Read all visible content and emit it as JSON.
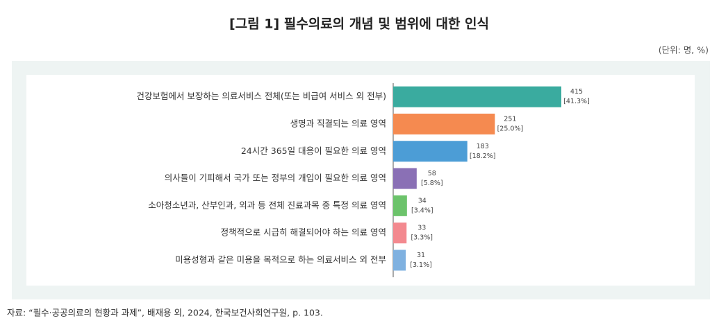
{
  "chart_data": {
    "type": "bar",
    "orientation": "horizontal",
    "title": "[그림 1] 필수의료의 개념 및 범위에 대한 인식",
    "unit_note": "(단위: 명, %)",
    "source": "자료: “필수·공공의료의 현황과 과제”, 배재용 외, 2024, 한국보건사회연구원, p. 103.",
    "categories": [
      "건강보험에서 보장하는 의료서비스 전체(또는 비급여 서비스 외 전부)",
      "생명과 직결되는 의료 영역",
      "24시간 365일 대응이 필요한 의료 영역",
      "의사들이 기피해서 국가 또는 정부의 개입이 필요한 의료 영역",
      "소아청소년과, 산부인과, 외과 등 전체 진료과목 중 특정 의료 영역",
      "정책적으로 시급히 해결되어야 하는 의료 영역",
      "미용성형과 같은 미용을 목적으로 하는 의료서비스 외 전부"
    ],
    "values": [
      415,
      251,
      183,
      58,
      34,
      33,
      31
    ],
    "percents": [
      41.3,
      25.0,
      18.2,
      5.8,
      3.4,
      3.3,
      3.1
    ],
    "percent_labels": [
      "[41.3%]",
      "[25.0%]",
      "[18.2%]",
      "[5.8%]",
      "[3.4%]",
      "[3.3%]",
      "[3.1%]"
    ],
    "colors": [
      "#3aab9f",
      "#f58a50",
      "#4c9dd6",
      "#8a70b5",
      "#6cc36b",
      "#f3898f",
      "#7fb1e0"
    ]
  }
}
